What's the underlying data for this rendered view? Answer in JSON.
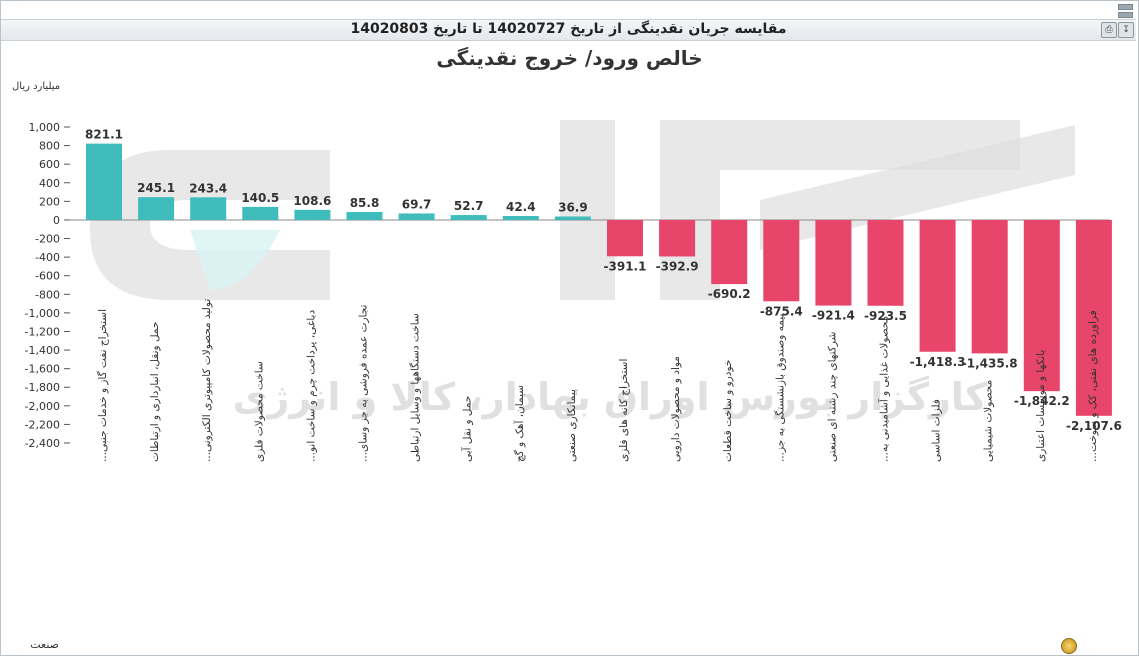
{
  "window": {
    "title": "مقایسه جریان نقدینگی از تاریخ 14020727 تا تاریخ 14020803"
  },
  "watermark": "کارگزار بورس اوراق بهادار، کالا و انرژی",
  "icons": {
    "print": "printer-icon",
    "export": "export-icon",
    "refresh": "refresh-icon"
  },
  "chart_data": {
    "type": "bar",
    "title": "خالص ورود/ خروج نقدینگی",
    "ylabel": "میلیارد ریال",
    "xlabel": "صنعت",
    "ylim": [
      -2400,
      1000
    ],
    "yticks": [
      1000,
      800,
      600,
      400,
      200,
      0,
      -200,
      -400,
      -600,
      -800,
      -1000,
      -1200,
      -1400,
      -1600,
      -1800,
      -2000,
      -2200,
      -2400
    ],
    "ytick_labels": [
      "1,000",
      "800",
      "600",
      "400",
      "200",
      "0",
      "-200",
      "-400",
      "-600",
      "-800",
      "-1,000",
      "-1,200",
      "-1,400",
      "-1,600",
      "-1,800",
      "-2,000",
      "-2,200",
      "-2,400"
    ],
    "grid": false,
    "positive_color": "#3fbcbc",
    "negative_color": "#e8456a",
    "categories": [
      "استخراج نفت گاز و خدمات جنبی...",
      "حمل ونقل، انبارداری و ارتباطات",
      "تولید محصولات کامپیوتری الکترونی...",
      "ساخت محصولات فلزی",
      "دباغی، پرداخت چرم و ساخت انو...",
      "تجارت عمده فروشی به جز وسای...",
      "ساخت دستگاهها و وسایل ارتباطی",
      "حمل و نقل آبی",
      "سیمان، آهک و گچ",
      "پیمانکاری صنعتی",
      "استخراج کانه های فلزی",
      "مواد و محصولات دارویی",
      "خودرو و ساخت قطعات",
      "بیمه وصندوق بازنشستگی به جز...",
      "شرکتهای چند رشته ای صنعتی",
      "محصولات غذایی و آشامیدنی به...",
      "فلزات اساسی",
      "محصولات شیمیایی",
      "بانکها و موسسات اعتباری",
      "فراورده های نفتی، کک و سوخت..."
    ],
    "values": [
      821.1,
      245.1,
      243.4,
      140.5,
      108.6,
      85.8,
      69.7,
      52.7,
      42.4,
      36.9,
      -391.1,
      -392.9,
      -690.2,
      -875.4,
      -921.4,
      -923.5,
      -1418.3,
      -1435.8,
      -1842.2,
      -2107.6
    ],
    "value_labels": [
      "821.1",
      "245.1",
      "243.4",
      "140.5",
      "108.6",
      "85.8",
      "69.7",
      "52.7",
      "42.4",
      "36.9",
      "-391.1",
      "-392.9",
      "-690.2",
      "-875.4",
      "-921.4",
      "-923.5",
      "-1,418.3",
      "-1,435.8",
      "-1,842.2",
      "-2,107.6"
    ]
  }
}
